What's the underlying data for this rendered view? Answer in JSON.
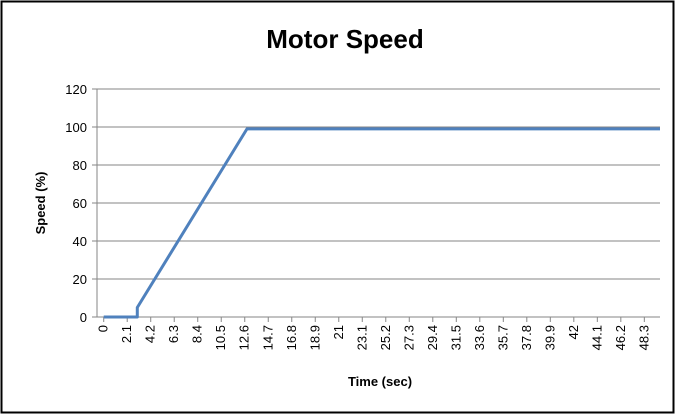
{
  "chart_data": {
    "type": "line",
    "title": "Motor Speed",
    "x_label": "Time (sec)",
    "y_label": "Speed (%)",
    "x": [
      0,
      3,
      3,
      12.8,
      49.7
    ],
    "series": [
      {
        "name": "Speed",
        "color": "#4f81bd",
        "values": [
          0,
          0,
          5,
          99,
          99
        ]
      }
    ],
    "xlim": [
      -0.6,
      49.7
    ],
    "xticks": [
      0,
      2.1,
      4.2,
      6.3,
      8.4,
      10.5,
      12.6,
      14.7,
      16.8,
      18.9,
      21,
      23.1,
      25.2,
      27.3,
      29.4,
      31.5,
      33.6,
      35.7,
      37.8,
      39.9,
      42,
      44.1,
      46.2,
      48.3
    ],
    "ylim": [
      0,
      120
    ],
    "yticks": [
      0,
      20,
      40,
      60,
      80,
      100,
      120
    ],
    "grid": true
  }
}
